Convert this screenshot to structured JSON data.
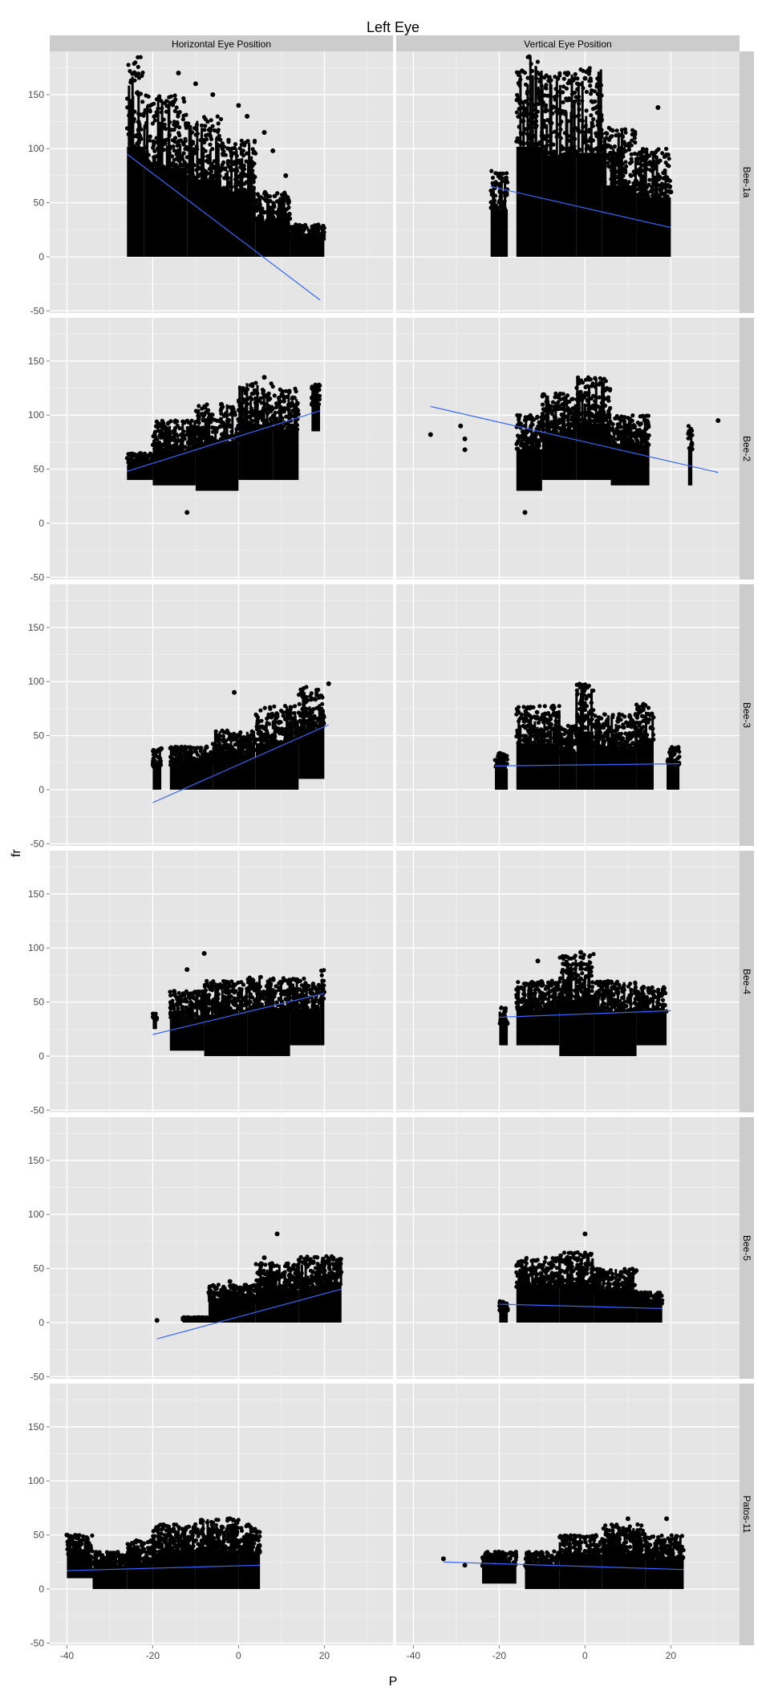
{
  "chart_data": {
    "type": "scatter",
    "title": "Left Eye",
    "xlabel": "P",
    "ylabel": "fr",
    "xlim": [
      -44,
      36
    ],
    "ylim": [
      -52,
      190
    ],
    "x_ticks": [
      -40,
      -20,
      0,
      20
    ],
    "y_ticks": [
      -50,
      0,
      50,
      100,
      150
    ],
    "grid": true,
    "legend": "none",
    "colors": {
      "panel_bg": "#e5e5e5",
      "grid_major": "#ffffff",
      "grid_minor": "#f2f2f2",
      "strip_bg": "#cccccc",
      "points": "#000000",
      "fit_line": "#3366ff",
      "text": "#4d4d4d"
    },
    "columns": [
      "Horizontal Eye Position",
      "Vertical Eye Position"
    ],
    "rows": [
      "Bee-1a",
      "Bee-2",
      "Bee-3",
      "Bee-4",
      "Bee-5",
      "Patos-11"
    ],
    "panels": [
      {
        "row": "Bee-1a",
        "column": "Horizontal Eye Position",
        "fit": {
          "x": [
            -26,
            19
          ],
          "y": [
            95,
            -40
          ]
        },
        "clusters": [
          {
            "x": [
              -26,
              -22
            ],
            "y": [
              0,
              185
            ]
          },
          {
            "x": [
              -22,
              -12
            ],
            "y": [
              0,
              150
            ]
          },
          {
            "x": [
              -12,
              -4
            ],
            "y": [
              0,
              130
            ]
          },
          {
            "x": [
              -4,
              4
            ],
            "y": [
              0,
              110
            ]
          },
          {
            "x": [
              4,
              12
            ],
            "y": [
              0,
              60
            ]
          },
          {
            "x": [
              12,
              20
            ],
            "y": [
              0,
              30
            ]
          }
        ],
        "outliers": [
          {
            "x": -14,
            "y": 170
          },
          {
            "x": -10,
            "y": 160
          },
          {
            "x": -6,
            "y": 150
          },
          {
            "x": 0,
            "y": 140
          },
          {
            "x": 2,
            "y": 130
          },
          {
            "x": 6,
            "y": 115
          },
          {
            "x": 8,
            "y": 98
          },
          {
            "x": 11,
            "y": 75
          },
          {
            "x": 18,
            "y": 5
          }
        ]
      },
      {
        "row": "Bee-1a",
        "column": "Vertical Eye Position",
        "fit": {
          "x": [
            -22,
            20
          ],
          "y": [
            65,
            27
          ]
        },
        "clusters": [
          {
            "x": [
              -22,
              -18
            ],
            "y": [
              0,
              80
            ]
          },
          {
            "x": [
              -16,
              -10
            ],
            "y": [
              0,
              185
            ]
          },
          {
            "x": [
              -10,
              -2
            ],
            "y": [
              0,
              170
            ]
          },
          {
            "x": [
              -2,
              4
            ],
            "y": [
              0,
              175
            ]
          },
          {
            "x": [
              4,
              12
            ],
            "y": [
              0,
              120
            ]
          },
          {
            "x": [
              12,
              20
            ],
            "y": [
              0,
              100
            ]
          }
        ],
        "outliers": [
          {
            "x": -13,
            "y": 185
          },
          {
            "x": -4,
            "y": 170
          },
          {
            "x": 0,
            "y": 165
          },
          {
            "x": 17,
            "y": 138
          },
          {
            "x": 20,
            "y": 60
          }
        ]
      },
      {
        "row": "Bee-2",
        "column": "Horizontal Eye Position",
        "fit": {
          "x": [
            -26,
            19
          ],
          "y": [
            48,
            104
          ]
        },
        "clusters": [
          {
            "x": [
              -26,
              -20
            ],
            "y": [
              40,
              65
            ]
          },
          {
            "x": [
              -20,
              -10
            ],
            "y": [
              35,
              95
            ]
          },
          {
            "x": [
              -10,
              0
            ],
            "y": [
              30,
              110
            ]
          },
          {
            "x": [
              0,
              8
            ],
            "y": [
              40,
              130
            ]
          },
          {
            "x": [
              8,
              14
            ],
            "y": [
              40,
              125
            ]
          },
          {
            "x": [
              17,
              19
            ],
            "y": [
              85,
              130
            ]
          }
        ],
        "outliers": [
          {
            "x": -12,
            "y": 10
          },
          {
            "x": -4,
            "y": 110
          },
          {
            "x": 6,
            "y": 135
          }
        ]
      },
      {
        "row": "Bee-2",
        "column": "Vertical Eye Position",
        "fit": {
          "x": [
            -36,
            31
          ],
          "y": [
            108,
            47
          ]
        },
        "clusters": [
          {
            "x": [
              -16,
              -10
            ],
            "y": [
              30,
              100
            ]
          },
          {
            "x": [
              -10,
              -2
            ],
            "y": [
              40,
              120
            ]
          },
          {
            "x": [
              -2,
              6
            ],
            "y": [
              40,
              135
            ]
          },
          {
            "x": [
              6,
              15
            ],
            "y": [
              35,
              100
            ]
          },
          {
            "x": [
              24,
              25
            ],
            "y": [
              35,
              95
            ]
          }
        ],
        "outliers": [
          {
            "x": -36,
            "y": 82
          },
          {
            "x": -29,
            "y": 90
          },
          {
            "x": -28,
            "y": 78
          },
          {
            "x": -28,
            "y": 68
          },
          {
            "x": -14,
            "y": 10
          },
          {
            "x": 31,
            "y": 95
          }
        ]
      },
      {
        "row": "Bee-3",
        "column": "Horizontal Eye Position",
        "fit": {
          "x": [
            -20,
            21
          ],
          "y": [
            -12,
            60
          ]
        },
        "clusters": [
          {
            "x": [
              -20,
              -18
            ],
            "y": [
              0,
              38
            ]
          },
          {
            "x": [
              -16,
              -6
            ],
            "y": [
              0,
              40
            ]
          },
          {
            "x": [
              -6,
              4
            ],
            "y": [
              0,
              55
            ]
          },
          {
            "x": [
              4,
              14
            ],
            "y": [
              0,
              78
            ]
          },
          {
            "x": [
              14,
              20
            ],
            "y": [
              10,
              95
            ]
          }
        ],
        "outliers": [
          {
            "x": -18,
            "y": 38
          },
          {
            "x": -1,
            "y": 90
          },
          {
            "x": 21,
            "y": 98
          }
        ]
      },
      {
        "row": "Bee-3",
        "column": "Vertical Eye Position",
        "fit": {
          "x": [
            -21,
            22
          ],
          "y": [
            22,
            24
          ]
        },
        "clusters": [
          {
            "x": [
              -21,
              -18
            ],
            "y": [
              0,
              35
            ]
          },
          {
            "x": [
              -16,
              -6
            ],
            "y": [
              0,
              78
            ]
          },
          {
            "x": [
              -6,
              -2
            ],
            "y": [
              0,
              60
            ]
          },
          {
            "x": [
              -2,
              2
            ],
            "y": [
              0,
              98
            ]
          },
          {
            "x": [
              2,
              12
            ],
            "y": [
              0,
              70
            ]
          },
          {
            "x": [
              12,
              16
            ],
            "y": [
              0,
              80
            ]
          },
          {
            "x": [
              19,
              22
            ],
            "y": [
              0,
              40
            ]
          }
        ],
        "outliers": [
          {
            "x": 0,
            "y": 97
          },
          {
            "x": 14,
            "y": 78
          }
        ]
      },
      {
        "row": "Bee-4",
        "column": "Horizontal Eye Position",
        "fit": {
          "x": [
            -20,
            20
          ],
          "y": [
            20,
            58
          ]
        },
        "clusters": [
          {
            "x": [
              -20,
              -19
            ],
            "y": [
              25,
              40
            ]
          },
          {
            "x": [
              -16,
              -8
            ],
            "y": [
              5,
              60
            ]
          },
          {
            "x": [
              -8,
              2
            ],
            "y": [
              0,
              70
            ]
          },
          {
            "x": [
              2,
              12
            ],
            "y": [
              0,
              75
            ]
          },
          {
            "x": [
              12,
              19
            ],
            "y": [
              10,
              72
            ]
          },
          {
            "x": [
              19,
              20
            ],
            "y": [
              10,
              88
            ]
          }
        ],
        "outliers": [
          {
            "x": -8,
            "y": 95
          },
          {
            "x": -12,
            "y": 80
          },
          {
            "x": -15,
            "y": 60
          }
        ]
      },
      {
        "row": "Bee-4",
        "column": "Vertical Eye Position",
        "fit": {
          "x": [
            -20,
            20
          ],
          "y": [
            36,
            42
          ]
        },
        "clusters": [
          {
            "x": [
              -20,
              -18
            ],
            "y": [
              10,
              45
            ]
          },
          {
            "x": [
              -16,
              -6
            ],
            "y": [
              10,
              70
            ]
          },
          {
            "x": [
              -6,
              2
            ],
            "y": [
              0,
              95
            ]
          },
          {
            "x": [
              2,
              12
            ],
            "y": [
              0,
              70
            ]
          },
          {
            "x": [
              12,
              19
            ],
            "y": [
              10,
              65
            ]
          }
        ],
        "outliers": [
          {
            "x": -11,
            "y": 88
          },
          {
            "x": -1,
            "y": 96
          }
        ]
      },
      {
        "row": "Bee-5",
        "column": "Horizontal Eye Position",
        "fit": {
          "x": [
            -19,
            24
          ],
          "y": [
            -15,
            31
          ]
        },
        "clusters": [
          {
            "x": [
              -13,
              -6
            ],
            "y": [
              0,
              5
            ]
          },
          {
            "x": [
              -7,
              4
            ],
            "y": [
              0,
              35
            ]
          },
          {
            "x": [
              4,
              14
            ],
            "y": [
              0,
              55
            ]
          },
          {
            "x": [
              14,
              24
            ],
            "y": [
              0,
              62
            ]
          }
        ],
        "outliers": [
          {
            "x": -19,
            "y": 2
          },
          {
            "x": 9,
            "y": 82
          },
          {
            "x": 6,
            "y": 60
          },
          {
            "x": -2,
            "y": 38
          }
        ]
      },
      {
        "row": "Bee-5",
        "column": "Vertical Eye Position",
        "fit": {
          "x": [
            -20,
            18
          ],
          "y": [
            17,
            13
          ]
        },
        "clusters": [
          {
            "x": [
              -20,
              -18
            ],
            "y": [
              0,
              20
            ]
          },
          {
            "x": [
              -16,
              -6
            ],
            "y": [
              0,
              60
            ]
          },
          {
            "x": [
              -6,
              2
            ],
            "y": [
              0,
              65
            ]
          },
          {
            "x": [
              2,
              12
            ],
            "y": [
              0,
              50
            ]
          },
          {
            "x": [
              12,
              18
            ],
            "y": [
              0,
              28
            ]
          }
        ],
        "outliers": [
          {
            "x": 0,
            "y": 82
          }
        ]
      },
      {
        "row": "Patos-11",
        "column": "Horizontal Eye Position",
        "fit": {
          "x": [
            -40,
            5
          ],
          "y": [
            17,
            22
          ]
        },
        "clusters": [
          {
            "x": [
              -40,
              -34
            ],
            "y": [
              10,
              50
            ]
          },
          {
            "x": [
              -34,
              -26
            ],
            "y": [
              0,
              35
            ]
          },
          {
            "x": [
              -26,
              -20
            ],
            "y": [
              0,
              45
            ]
          },
          {
            "x": [
              -20,
              -10
            ],
            "y": [
              0,
              60
            ]
          },
          {
            "x": [
              -10,
              0
            ],
            "y": [
              0,
              65
            ]
          },
          {
            "x": [
              0,
              5
            ],
            "y": [
              0,
              60
            ]
          }
        ],
        "outliers": [
          {
            "x": -40,
            "y": 50
          },
          {
            "x": -38,
            "y": 42
          },
          {
            "x": -2,
            "y": 65
          }
        ]
      },
      {
        "row": "Patos-11",
        "column": "Vertical Eye Position",
        "fit": {
          "x": [
            -33,
            23
          ],
          "y": [
            25,
            18
          ]
        },
        "clusters": [
          {
            "x": [
              -24,
              -16
            ],
            "y": [
              5,
              35
            ]
          },
          {
            "x": [
              -14,
              -6
            ],
            "y": [
              0,
              35
            ]
          },
          {
            "x": [
              -6,
              4
            ],
            "y": [
              0,
              50
            ]
          },
          {
            "x": [
              4,
              14
            ],
            "y": [
              0,
              60
            ]
          },
          {
            "x": [
              14,
              23
            ],
            "y": [
              0,
              50
            ]
          }
        ],
        "outliers": [
          {
            "x": -33,
            "y": 28
          },
          {
            "x": -28,
            "y": 22
          },
          {
            "x": 10,
            "y": 65
          },
          {
            "x": 19,
            "y": 65
          }
        ]
      }
    ]
  }
}
